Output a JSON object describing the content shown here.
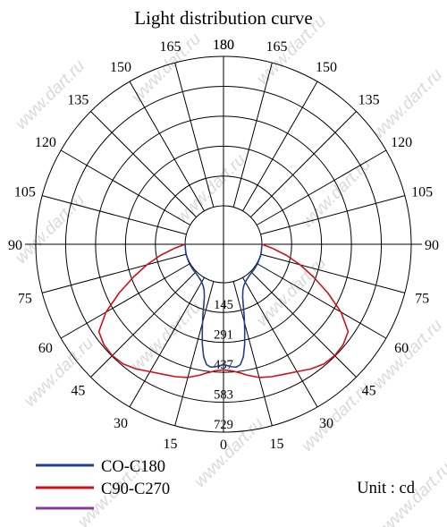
{
  "chart_data": {
    "type": "polar",
    "title": "Light distribution curve",
    "unit_label": "Unit : cd",
    "radial_ticks": [
      145,
      291,
      437,
      583,
      729
    ],
    "rmax": 729,
    "angle_ticks_left": [
      180,
      165,
      150,
      135,
      120,
      105,
      90,
      75,
      60,
      45,
      30,
      15,
      0
    ],
    "angle_ticks_right": [
      180,
      165,
      150,
      135,
      120,
      105,
      90,
      75,
      60,
      45,
      30,
      15
    ],
    "grid": true,
    "legend_position": "bottom-left",
    "series": [
      {
        "name": "CO-C180",
        "color": "#1f3f8f",
        "angles": [
          0,
          2,
          4,
          6,
          8,
          10,
          12,
          14,
          16,
          18,
          20,
          23,
          26,
          30,
          35,
          40,
          50,
          60,
          75,
          90
        ],
        "values": [
          400,
          405,
          412,
          415,
          405,
          370,
          310,
          240,
          180,
          125,
          85,
          55,
          38,
          25,
          16,
          10,
          6,
          4,
          2,
          0
        ]
      },
      {
        "name": "C90-C270",
        "color": "#d0101a",
        "angles": [
          0,
          4,
          8,
          10,
          15,
          20,
          25,
          30,
          35,
          40,
          45,
          50,
          55,
          60,
          65,
          70,
          75,
          80,
          85,
          90
        ],
        "values": [
          425,
          432,
          448,
          460,
          485,
          500,
          512,
          530,
          555,
          575,
          580,
          575,
          555,
          475,
          375,
          280,
          200,
          125,
          55,
          0
        ]
      },
      {
        "name": "",
        "color": "#8a3c9a",
        "angles": [],
        "values": []
      }
    ]
  },
  "watermark": "www.dart.ru"
}
